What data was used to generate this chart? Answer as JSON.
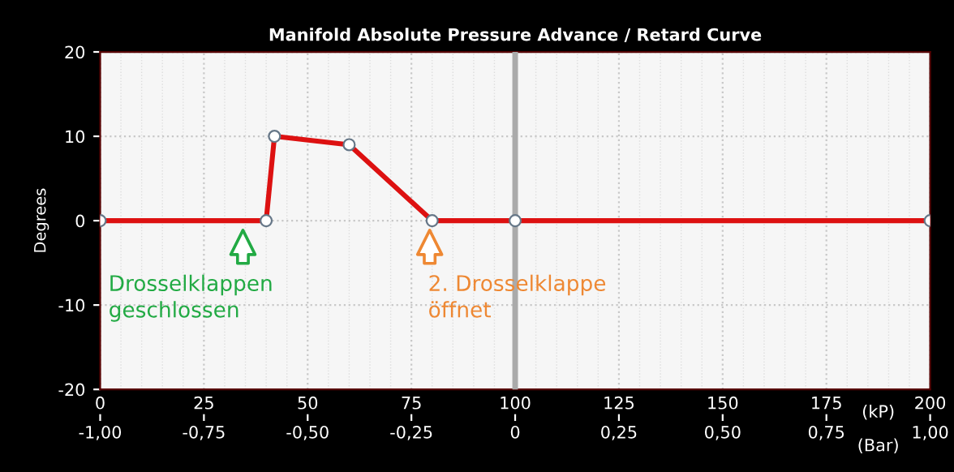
{
  "chart_data": {
    "type": "line",
    "title": "Manifold Absolute Pressure Advance / Retard Curve",
    "ylabel": "Degrees",
    "xlabel": "(kP)",
    "x2label": "(Bar)",
    "x": [
      0,
      40,
      42,
      60,
      80,
      100,
      200
    ],
    "series": [
      {
        "color": "#dd1111",
        "values": [
          0,
          0,
          10,
          9,
          0,
          0,
          0
        ]
      }
    ],
    "xlim": [
      0,
      200
    ],
    "xticks": [
      0,
      25,
      50,
      75,
      100,
      125,
      150,
      175,
      200
    ],
    "x2lim": [
      -1,
      1
    ],
    "x2ticks": [
      {
        "value": -1,
        "label": "-1,00"
      },
      {
        "value": -0.75,
        "label": "-0,75"
      },
      {
        "value": -0.5,
        "label": "-0,50"
      },
      {
        "value": -0.25,
        "label": "-0,25"
      },
      {
        "value": 0,
        "label": "0"
      },
      {
        "value": 0.25,
        "label": "0,25"
      },
      {
        "value": 0.5,
        "label": "0,50"
      },
      {
        "value": 0.75,
        "label": "0,75"
      },
      {
        "value": 1,
        "label": "1,00"
      }
    ],
    "ylim": [
      -20,
      20
    ],
    "yticks": [
      -20,
      -10,
      0,
      10,
      20
    ],
    "ref_lines": [
      {
        "axis": "x",
        "value": 100,
        "color": "#aaaaaa"
      }
    ],
    "annotations": [
      "Drosselklappen\ngeschlossen",
      "2. Drosselklappe\nöffnet"
    ],
    "grid": true,
    "marker": "circle",
    "line_style": "solid"
  }
}
